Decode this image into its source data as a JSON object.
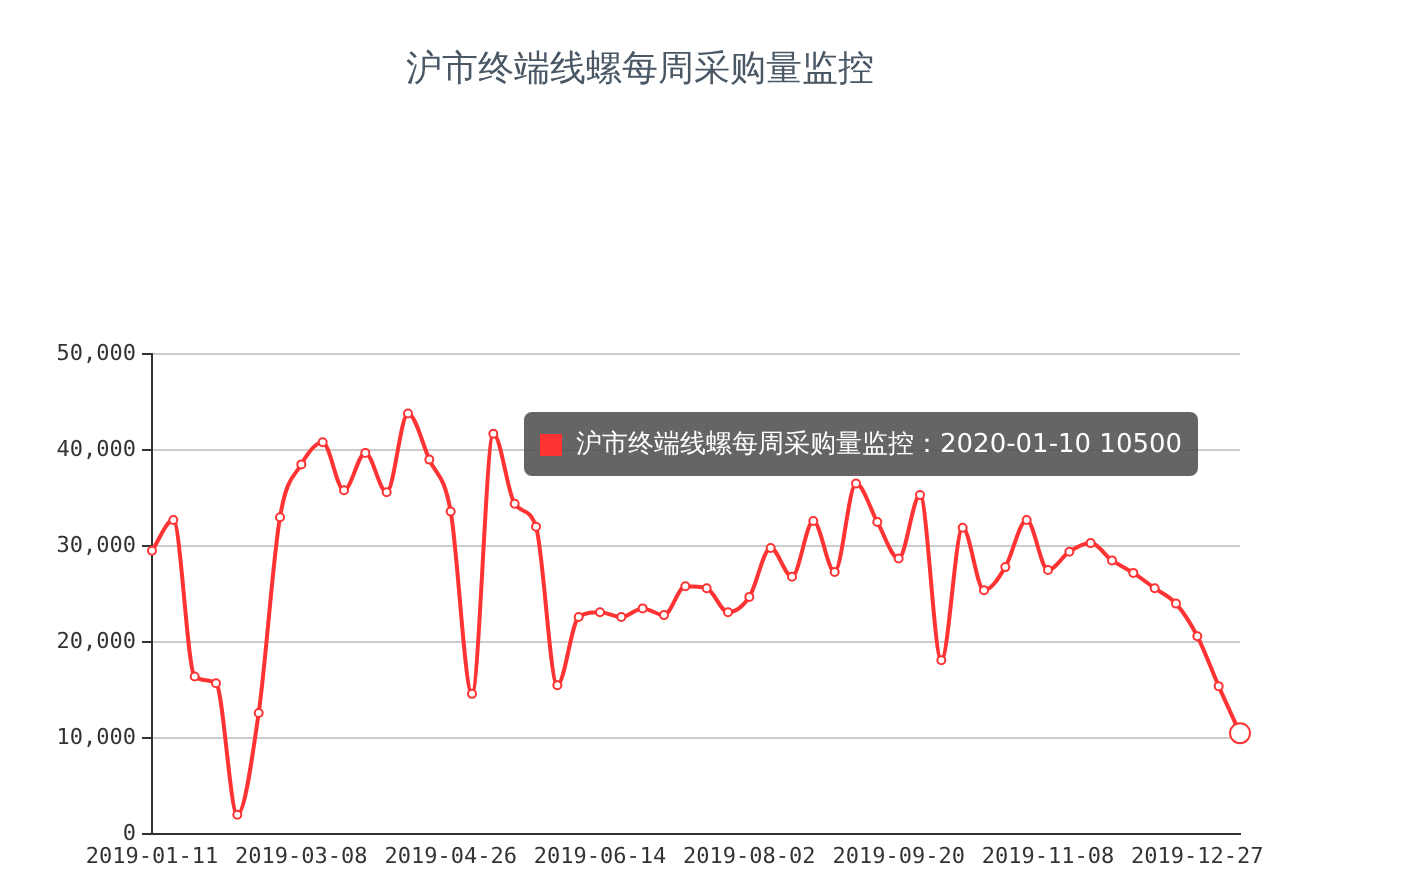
{
  "chart_data": {
    "type": "line",
    "title": "沪市终端线螺每周采购量监控",
    "categories": [
      "2019-01-11",
      null,
      null,
      null,
      null,
      null,
      null,
      "2019-03-08",
      null,
      null,
      null,
      null,
      null,
      null,
      "2019-04-26",
      null,
      null,
      null,
      null,
      null,
      null,
      "2019-06-14",
      null,
      null,
      null,
      null,
      null,
      null,
      "2019-08-02",
      null,
      null,
      null,
      null,
      null,
      null,
      "2019-09-20",
      null,
      null,
      null,
      null,
      null,
      null,
      "2019-11-08",
      null,
      null,
      null,
      null,
      null,
      null,
      "2019-12-27",
      null,
      null
    ],
    "series": [
      {
        "color": "#ff3333",
        "values": [
          29500,
          32700,
          16400,
          15700,
          2000,
          12600,
          33000,
          38500,
          40800,
          35800,
          39700,
          35600,
          43800,
          39000,
          33600,
          14600,
          41700,
          34400,
          32000,
          15500,
          22600,
          23100,
          22600,
          23500,
          22800,
          25800,
          25600,
          23100,
          24700,
          29800,
          26800,
          32600,
          27300,
          36500,
          32500,
          28700,
          35300,
          18100,
          31900,
          25400,
          27800,
          32700,
          27500,
          29400,
          30300,
          28500,
          27200,
          25600,
          24000,
          20600,
          15400,
          10500
        ]
      }
    ],
    "ylim": [
      0,
      50000
    ],
    "yticks": [
      {
        "value": 0,
        "label": "0"
      },
      {
        "value": 10000,
        "label": "10,000"
      },
      {
        "value": 20000,
        "label": "20,000"
      },
      {
        "value": 30000,
        "label": "30,000"
      },
      {
        "value": 40000,
        "label": "40,000"
      },
      {
        "value": 50000,
        "label": "50,000"
      }
    ],
    "grid": "y",
    "legend": false,
    "marker": "circle",
    "line_style": "solid",
    "annotations": [
      "沪市终端线螺每周采购量监控：2020-01-10 10500"
    ]
  }
}
